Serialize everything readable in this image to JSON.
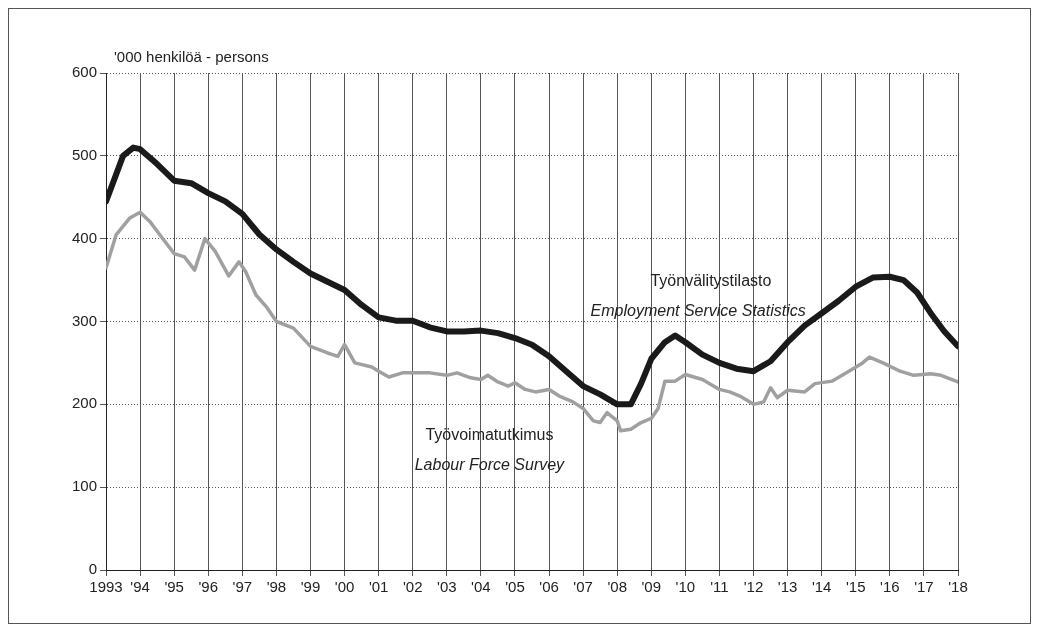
{
  "chart_data": {
    "type": "line",
    "ylabel": "'000 henkilöä - persons",
    "xlim": [
      1993,
      2018
    ],
    "ylim": [
      0,
      600
    ],
    "xticks": [
      1993,
      {
        "value": 1994,
        "label": "'94"
      },
      {
        "value": 1995,
        "label": "'95"
      },
      {
        "value": 1996,
        "label": "'96"
      },
      {
        "value": 1997,
        "label": "'97"
      },
      {
        "value": 1998,
        "label": "'98"
      },
      {
        "value": 1999,
        "label": "'99"
      },
      {
        "value": 2000,
        "label": "'00"
      },
      {
        "value": 2001,
        "label": "'01"
      },
      {
        "value": 2002,
        "label": "'02"
      },
      {
        "value": 2003,
        "label": "'03"
      },
      {
        "value": 2004,
        "label": "'04"
      },
      {
        "value": 2005,
        "label": "'05"
      },
      {
        "value": 2006,
        "label": "'06"
      },
      {
        "value": 2007,
        "label": "'07"
      },
      {
        "value": 2008,
        "label": "'08"
      },
      {
        "value": 2009,
        "label": "'09"
      },
      {
        "value": 2010,
        "label": "'10"
      },
      {
        "value": 2011,
        "label": "'11"
      },
      {
        "value": 2012,
        "label": "'12"
      },
      {
        "value": 2013,
        "label": "'13"
      },
      {
        "value": 2014,
        "label": "'14"
      },
      {
        "value": 2015,
        "label": "'15"
      },
      {
        "value": 2016,
        "label": "'16"
      },
      {
        "value": 2017,
        "label": "'17"
      },
      {
        "value": 2018,
        "label": "'18"
      }
    ],
    "yticks": [
      0,
      100,
      200,
      300,
      400,
      500,
      600
    ],
    "grid": true,
    "legend": false,
    "marker": "none",
    "line_style": "solid",
    "series": [
      {
        "color": "#a0a0a0",
        "x": [
          1993,
          1993.3,
          1993.7,
          1994,
          1994.3,
          1994.7,
          1995,
          1995.3,
          1995.6,
          1995.9,
          1996.2,
          1996.6,
          1996.9,
          1997.1,
          1997.4,
          1997.7,
          1998,
          1998.5,
          1999,
          1999.5,
          1999.8,
          2000,
          2000.3,
          2000.8,
          2001,
          2001.3,
          2001.7,
          2002,
          2002.5,
          2003,
          2003.3,
          2003.7,
          2004,
          2004.2,
          2004.5,
          2004.8,
          2005,
          2005.3,
          2005.6,
          2006,
          2006.3,
          2006.7,
          2007,
          2007.3,
          2007.5,
          2007.7,
          2008,
          2008.1,
          2008.4,
          2008.7,
          2009,
          2009.2,
          2009.4,
          2009.7,
          2010,
          2010.5,
          2011,
          2011.3,
          2011.6,
          2012,
          2012.3,
          2012.5,
          2012.7,
          2013,
          2013.5,
          2013.8,
          2014.3,
          2014.8,
          2015.2,
          2015.4,
          2015.8,
          2016.3,
          2016.7,
          2017.2,
          2017.5,
          2018
        ],
        "values": [
          365,
          405,
          425,
          432,
          420,
          398,
          382,
          378,
          362,
          400,
          385,
          355,
          372,
          360,
          332,
          318,
          300,
          292,
          270,
          262,
          258,
          272,
          250,
          245,
          240,
          233,
          238,
          238,
          238,
          235,
          238,
          232,
          230,
          235,
          227,
          222,
          226,
          218,
          215,
          218,
          210,
          203,
          195,
          180,
          178,
          190,
          180,
          168,
          170,
          178,
          183,
          195,
          228,
          228,
          236,
          230,
          218,
          215,
          210,
          200,
          203,
          220,
          208,
          217,
          215,
          225,
          228,
          240,
          250,
          257,
          250,
          240,
          235,
          237,
          235,
          227
        ]
      },
      {
        "color": "#1a1a1a",
        "x": [
          1993,
          1993.5,
          1993.8,
          1994,
          1994.5,
          1995,
          1995.5,
          1996,
          1996.5,
          1997,
          1997.5,
          1998,
          1998.5,
          1999,
          1999.5,
          2000,
          2000.5,
          2001,
          2001.5,
          2002,
          2002.5,
          2003,
          2003.5,
          2004,
          2004.5,
          2005,
          2005.5,
          2006,
          2006.5,
          2007,
          2007.5,
          2008,
          2008.4,
          2008.7,
          2009,
          2009.4,
          2009.7,
          2010,
          2010.5,
          2011,
          2011.5,
          2012,
          2012.5,
          2013,
          2013.5,
          2014,
          2014.5,
          2015,
          2015.5,
          2016,
          2016.4,
          2016.8,
          2017.2,
          2017.6,
          2018
        ],
        "values": [
          445,
          500,
          510,
          508,
          490,
          470,
          467,
          455,
          445,
          430,
          405,
          387,
          372,
          358,
          348,
          338,
          320,
          305,
          301,
          301,
          293,
          288,
          288,
          289,
          286,
          280,
          272,
          258,
          240,
          222,
          212,
          200,
          200,
          225,
          255,
          275,
          283,
          275,
          260,
          250,
          243,
          240,
          252,
          275,
          295,
          310,
          325,
          342,
          353,
          354,
          350,
          335,
          310,
          288,
          270
        ]
      }
    ],
    "annotations": [
      "Työnvälitystilasto",
      "Employment Service Statistics",
      "Työvoimatutkimus",
      "Labour Force Survey"
    ]
  }
}
